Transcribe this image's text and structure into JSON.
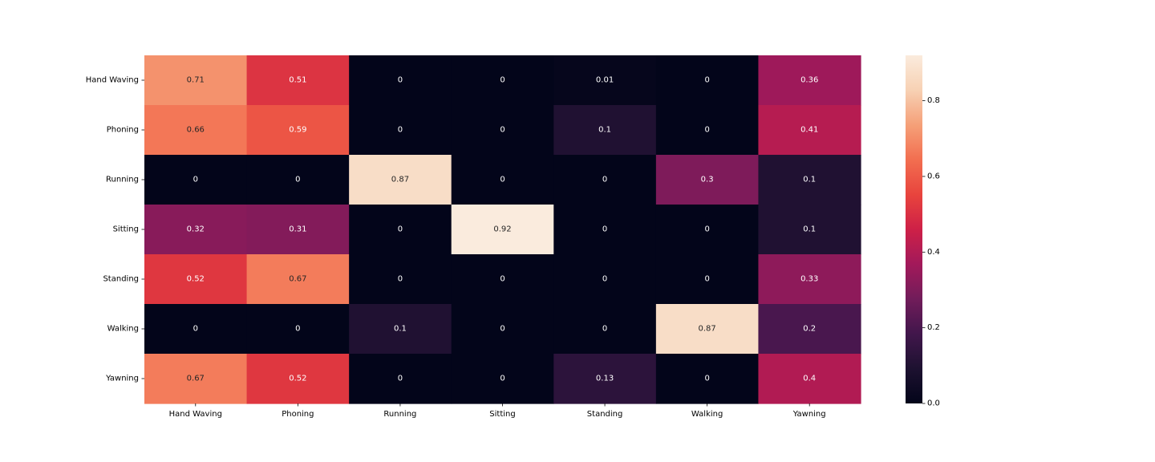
{
  "chart_data": {
    "type": "heatmap",
    "title": "",
    "xlabel": "",
    "ylabel": "",
    "x_categories": [
      "Hand Waving",
      "Phoning",
      "Running",
      "Sitting",
      "Standing",
      "Walking",
      "Yawning"
    ],
    "y_categories": [
      "Hand Waving",
      "Phoning",
      "Running",
      "Sitting",
      "Standing",
      "Walking",
      "Yawning"
    ],
    "values": [
      [
        0.71,
        0.51,
        0,
        0,
        0.01,
        0,
        0.36
      ],
      [
        0.66,
        0.59,
        0,
        0,
        0.1,
        0,
        0.41
      ],
      [
        0,
        0,
        0.87,
        0,
        0,
        0.3,
        0.1
      ],
      [
        0.32,
        0.31,
        0,
        0.92,
        0,
        0,
        0.1
      ],
      [
        0.52,
        0.67,
        0,
        0,
        0,
        0,
        0.33
      ],
      [
        0,
        0,
        0.1,
        0,
        0,
        0.87,
        0.2
      ],
      [
        0.67,
        0.52,
        0,
        0,
        0.13,
        0,
        0.4
      ]
    ],
    "cell_labels": [
      [
        "0.71",
        "0.51",
        "0",
        "0",
        "0.01",
        "0",
        "0.36"
      ],
      [
        "0.66",
        "0.59",
        "0",
        "0",
        "0.1",
        "0",
        "0.41"
      ],
      [
        "0",
        "0",
        "0.87",
        "0",
        "0",
        "0.3",
        "0.1"
      ],
      [
        "0.32",
        "0.31",
        "0",
        "0.92",
        "0",
        "0",
        "0.1"
      ],
      [
        "0.52",
        "0.67",
        "0",
        "0",
        "0",
        "0",
        "0.33"
      ],
      [
        "0",
        "0",
        "0.1",
        "0",
        "0",
        "0.87",
        "0.2"
      ],
      [
        "0.67",
        "0.52",
        "0",
        "0",
        "0.13",
        "0",
        "0.4"
      ]
    ],
    "colormap": "rocket",
    "vmin": 0.0,
    "vmax": 0.92,
    "colorbar": {
      "ticks": [
        0.0,
        0.2,
        0.4,
        0.6,
        0.8
      ],
      "tick_labels": [
        "0.0",
        "0.2",
        "0.4",
        "0.6",
        "0.8"
      ],
      "placement": "right"
    },
    "grid": false
  }
}
